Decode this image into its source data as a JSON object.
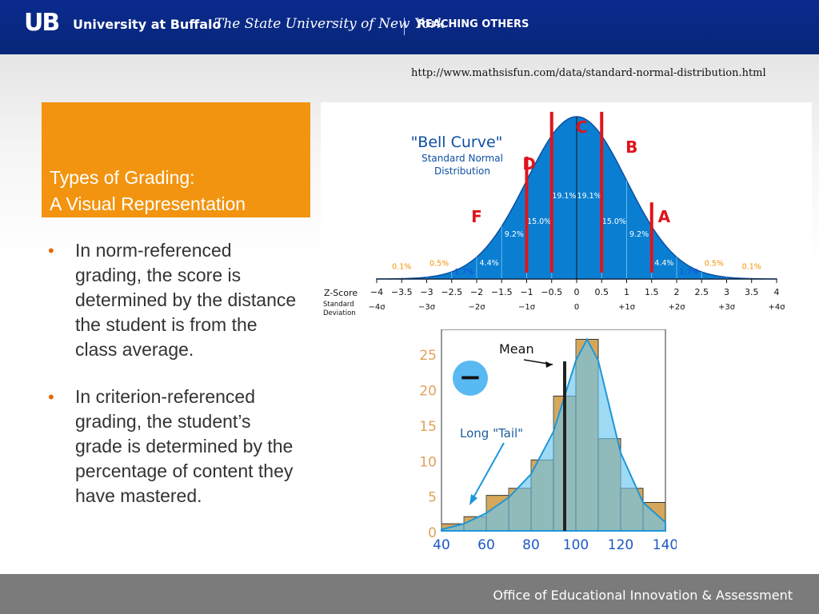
{
  "header": {
    "logo": "UB",
    "brand": "University at Buffalo",
    "subtitle": "The State University of New York",
    "tagline": "REACHING OTHERS"
  },
  "source_url": "http://www.mathsisfun.com/data/standard-normal-distribution.html",
  "title": "Types of Grading:\nA Visual Representation",
  "bullets": [
    "In norm-referenced grading, the score is determined by the distance the student is from the class average.",
    "In criterion-referenced grading, the student’s grade is determined by the percentage of content they have mastered."
  ],
  "footer": "Office of Educational Innovation & Assessment",
  "colors": {
    "header": "#082778",
    "title_box": "#f2940f",
    "bullet": "#e36c09",
    "footer": "#7b7b7b",
    "bell_fill": "#0a7fd2",
    "grade_line": "#e0141b",
    "hist_bar": "#d6a75a",
    "hist_overlay": "#6cc6ee"
  },
  "chart_data": [
    {
      "type": "area",
      "title": "\"Bell Curve\"",
      "subtitle": "Standard Normal Distribution",
      "x_domain": [
        -4,
        4
      ],
      "z_ticks": [
        "−4",
        "−3.5",
        "−3",
        "−2.5",
        "−2",
        "−1.5",
        "−1",
        "−0.5",
        "0",
        "0.5",
        "1",
        "1.5",
        "2",
        "2.5",
        "3",
        "3.5",
        "4"
      ],
      "sd_ticks": [
        "−4σ",
        "−3σ",
        "−2σ",
        "−1σ",
        "0",
        "+1σ",
        "+2σ",
        "+3σ",
        "+4σ"
      ],
      "z_label": "Z-Score",
      "sd_label": "Standard Deviation",
      "band_percent": [
        {
          "label": "0.1%",
          "x": -3.5,
          "color": "#f29200"
        },
        {
          "label": "0.5%",
          "x": -2.75,
          "color": "#f29200"
        },
        {
          "label": "1.7%",
          "x": -2.25,
          "color": "#1a4be0"
        },
        {
          "label": "4.4%",
          "x": -1.75,
          "color": "#ffffff"
        },
        {
          "label": "9.2%",
          "x": -1.25,
          "color": "#ffffff"
        },
        {
          "label": "15.0%",
          "x": -0.75,
          "color": "#ffffff"
        },
        {
          "label": "19.1%",
          "x": -0.25,
          "color": "#ffffff"
        },
        {
          "label": "19.1%",
          "x": 0.25,
          "color": "#ffffff"
        },
        {
          "label": "15.0%",
          "x": 0.75,
          "color": "#ffffff"
        },
        {
          "label": "9.2%",
          "x": 1.25,
          "color": "#ffffff"
        },
        {
          "label": "4.4%",
          "x": 1.75,
          "color": "#ffffff"
        },
        {
          "label": "1.7%",
          "x": 2.25,
          "color": "#1a4be0"
        },
        {
          "label": "0.5%",
          "x": 2.75,
          "color": "#f29200"
        },
        {
          "label": "0.1%",
          "x": 3.5,
          "color": "#f29200"
        }
      ],
      "grade_cutoffs": [
        -1,
        -0.5,
        0.5,
        1.5
      ],
      "grades": [
        {
          "label": "F",
          "x": -2
        },
        {
          "label": "D",
          "x": -0.95
        },
        {
          "label": "C",
          "x": 0.1
        },
        {
          "label": "B",
          "x": 1.1
        },
        {
          "label": "A",
          "x": 1.75
        }
      ]
    },
    {
      "type": "bar",
      "title": "",
      "x_ticks": [
        "40",
        "60",
        "80",
        "100",
        "120",
        "140"
      ],
      "y_ticks": [
        "0",
        "5",
        "10",
        "15",
        "20",
        "25"
      ],
      "xlim": [
        40,
        140
      ],
      "ylim": [
        0,
        27.5
      ],
      "bins": [
        {
          "x0": 40,
          "x1": 50,
          "value": 1
        },
        {
          "x0": 50,
          "x1": 60,
          "value": 2
        },
        {
          "x0": 60,
          "x1": 70,
          "value": 5
        },
        {
          "x0": 70,
          "x1": 80,
          "value": 6
        },
        {
          "x0": 80,
          "x1": 90,
          "value": 10
        },
        {
          "x0": 90,
          "x1": 100,
          "value": 19
        },
        {
          "x0": 100,
          "x1": 110,
          "value": 27
        },
        {
          "x0": 110,
          "x1": 120,
          "value": 13
        },
        {
          "x0": 120,
          "x1": 130,
          "value": 6
        },
        {
          "x0": 130,
          "x1": 140,
          "value": 4
        }
      ],
      "density_curve": [
        {
          "x": 40,
          "y": 0.2
        },
        {
          "x": 50,
          "y": 1
        },
        {
          "x": 60,
          "y": 2.5
        },
        {
          "x": 70,
          "y": 4.7
        },
        {
          "x": 80,
          "y": 8
        },
        {
          "x": 90,
          "y": 14
        },
        {
          "x": 100,
          "y": 24
        },
        {
          "x": 105,
          "y": 27
        },
        {
          "x": 110,
          "y": 24
        },
        {
          "x": 120,
          "y": 11
        },
        {
          "x": 130,
          "y": 4
        },
        {
          "x": 140,
          "y": 1.2
        }
      ],
      "mean": 95,
      "annotations": [
        "Mean",
        "Long \"Tail\"",
        "−"
      ]
    }
  ]
}
